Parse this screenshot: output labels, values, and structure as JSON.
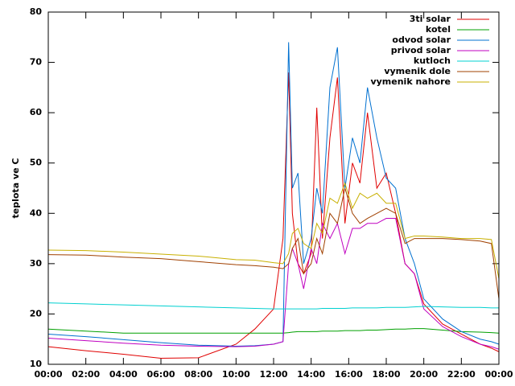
{
  "chart_data": {
    "type": "line",
    "ylabel": "teplota ve C",
    "xlim": [
      0,
      24
    ],
    "xticks": [
      {
        "value": 0,
        "label": "00:00"
      },
      {
        "value": 2,
        "label": "02:00"
      },
      {
        "value": 4,
        "label": "04:00"
      },
      {
        "value": 6,
        "label": "06:00"
      },
      {
        "value": 8,
        "label": "08:00"
      },
      {
        "value": 10,
        "label": "10:00"
      },
      {
        "value": 12,
        "label": "12:00"
      },
      {
        "value": 14,
        "label": "14:00"
      },
      {
        "value": 16,
        "label": "16:00"
      },
      {
        "value": 18,
        "label": "18:00"
      },
      {
        "value": 20,
        "label": "20:00"
      },
      {
        "value": 22,
        "label": "22:00"
      },
      {
        "value": 24,
        "label": "00:00"
      }
    ],
    "ylim": [
      10,
      80
    ],
    "yticks": [
      10,
      20,
      30,
      40,
      50,
      60,
      70,
      80
    ],
    "legend": "top-right",
    "x": [
      0,
      2,
      4,
      6,
      8,
      10,
      11,
      12,
      12.5,
      12.8,
      13,
      13.3,
      13.6,
      14,
      14.3,
      14.6,
      15,
      15.4,
      15.8,
      16.2,
      16.6,
      17,
      17.5,
      18,
      18.5,
      19,
      19.5,
      20,
      21,
      22,
      23,
      23.6,
      24
    ],
    "series": [
      {
        "name": "3ti solar",
        "color": "#e00000",
        "values": [
          13.5,
          12.7,
          12,
          11.2,
          11.3,
          14,
          17,
          21,
          35,
          68,
          40,
          30,
          28,
          32,
          61,
          35,
          55,
          67,
          38,
          50,
          46,
          60,
          45,
          48,
          40,
          30,
          28,
          22,
          18,
          16,
          14,
          13.2,
          12.5
        ]
      },
      {
        "name": "kotel",
        "color": "#00a000",
        "values": [
          17,
          16.6,
          16.2,
          16.2,
          16.2,
          16.2,
          16.2,
          16.2,
          16.2,
          16.3,
          16.4,
          16.5,
          16.5,
          16.5,
          16.5,
          16.6,
          16.6,
          16.6,
          16.7,
          16.7,
          16.7,
          16.8,
          16.8,
          16.9,
          17,
          17,
          17.1,
          17.1,
          16.8,
          16.5,
          16.4,
          16.3,
          16.2
        ]
      },
      {
        "name": "odvod solar",
        "color": "#0070d0",
        "values": [
          16,
          15.5,
          14.9,
          14.3,
          13.8,
          13.6,
          13.7,
          14,
          14.5,
          74,
          45,
          48,
          30,
          35,
          45,
          40,
          65,
          73,
          45,
          55,
          50,
          65,
          55,
          47,
          45,
          35,
          30,
          23,
          19,
          16.5,
          15,
          14.5,
          14
        ]
      },
      {
        "name": "privod solar",
        "color": "#c000c0",
        "values": [
          15.2,
          14.7,
          14.2,
          13.8,
          13.6,
          13.5,
          13.6,
          14,
          14.5,
          30,
          33,
          30,
          25,
          33,
          30,
          38,
          35,
          38,
          32,
          37,
          37,
          38,
          38,
          39,
          39,
          30,
          28,
          21,
          17.5,
          15.5,
          14,
          13.5,
          13
        ]
      },
      {
        "name": "kutloch",
        "color": "#00d0d0",
        "values": [
          22.2,
          22,
          21.8,
          21.6,
          21.4,
          21.2,
          21.1,
          21,
          21,
          21,
          21,
          21,
          21,
          21,
          21,
          21.1,
          21.1,
          21.1,
          21.1,
          21.2,
          21.2,
          21.2,
          21.2,
          21.3,
          21.3,
          21.3,
          21.4,
          21.5,
          21.4,
          21.3,
          21.3,
          21.2,
          21.2
        ]
      },
      {
        "name": "vymenik dole",
        "color": "#a04000",
        "values": [
          31.8,
          31.7,
          31.3,
          31,
          30.4,
          29.8,
          29.6,
          29.3,
          29,
          30,
          33,
          35,
          28,
          30,
          35,
          32,
          40,
          38,
          45,
          40,
          38,
          39,
          40,
          41,
          40,
          34,
          35,
          35,
          35,
          34.8,
          34.5,
          34,
          23
        ]
      },
      {
        "name": "vymenik nahore",
        "color": "#c8b000",
        "values": [
          32.7,
          32.6,
          32.3,
          31.9,
          31.5,
          30.8,
          30.7,
          30.2,
          30,
          32,
          36,
          37,
          34,
          33,
          38,
          36,
          43,
          42,
          46,
          41,
          44,
          43,
          44,
          42,
          42,
          35,
          35.5,
          35.5,
          35.3,
          35,
          35,
          34.8,
          27
        ]
      }
    ]
  }
}
